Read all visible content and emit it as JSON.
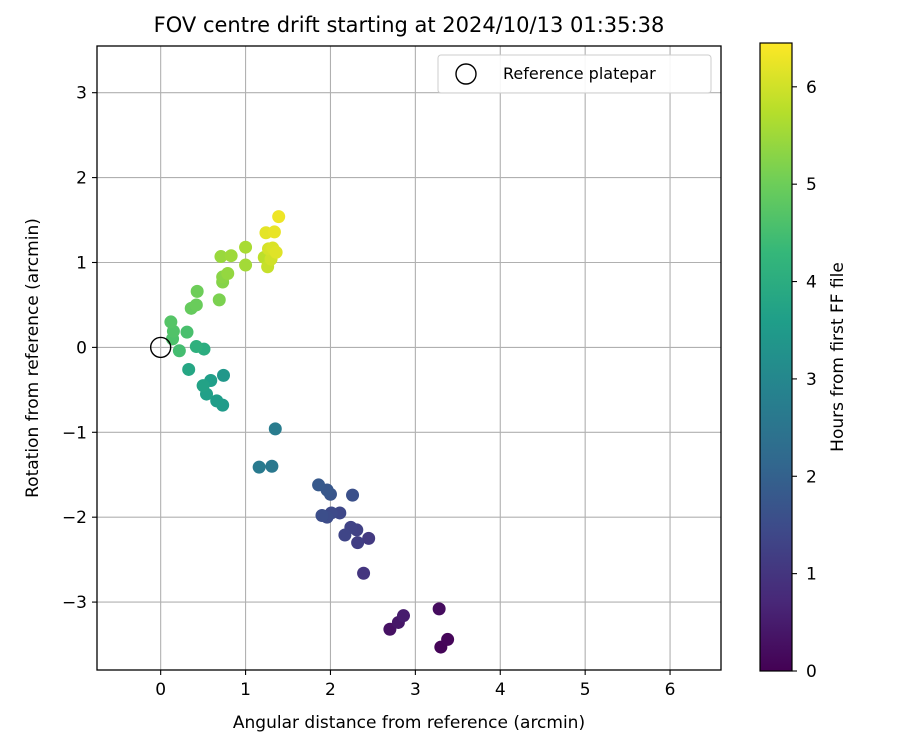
{
  "chart_data": {
    "type": "scatter",
    "title": "FOV centre drift starting at 2024/10/13 01:35:38",
    "xlabel": "Angular distance from reference (arcmin)",
    "ylabel": "Rotation from reference (arcmin)",
    "xlim": [
      -0.75,
      6.6
    ],
    "ylim": [
      -3.8,
      3.55
    ],
    "xticks": [
      0,
      1,
      2,
      3,
      4,
      5,
      6
    ],
    "yticks": [
      -3,
      -2,
      -1,
      0,
      1,
      2,
      3
    ],
    "xtick_labels": [
      "0",
      "1",
      "2",
      "3",
      "4",
      "5",
      "6"
    ],
    "ytick_labels": [
      "−3",
      "−2",
      "−1",
      "0",
      "1",
      "2",
      "3"
    ],
    "grid": true,
    "legend": {
      "placement": "top-right",
      "label": "Reference platepar"
    },
    "reference_point": {
      "x": 0,
      "y": 0
    },
    "colorbar": {
      "label": "Hours from first FF file",
      "colormap": "viridis",
      "range": [
        0,
        6.45
      ],
      "ticks": [
        0,
        1,
        2,
        3,
        4,
        5,
        6
      ],
      "tick_labels": [
        "0",
        "1",
        "2",
        "3",
        "4",
        "5",
        "6"
      ]
    },
    "points": [
      {
        "x": 3.3,
        "y": -3.53,
        "hours": 0.05
      },
      {
        "x": 3.38,
        "y": -3.44,
        "hours": 0.1
      },
      {
        "x": 3.28,
        "y": -3.08,
        "hours": 0.2
      },
      {
        "x": 2.7,
        "y": -3.32,
        "hours": 0.3
      },
      {
        "x": 2.8,
        "y": -3.24,
        "hours": 0.4
      },
      {
        "x": 2.86,
        "y": -3.16,
        "hours": 0.5
      },
      {
        "x": 2.39,
        "y": -2.66,
        "hours": 1.0
      },
      {
        "x": 2.45,
        "y": -2.25,
        "hours": 1.1
      },
      {
        "x": 2.32,
        "y": -2.3,
        "hours": 1.2
      },
      {
        "x": 2.31,
        "y": -2.15,
        "hours": 1.25
      },
      {
        "x": 2.24,
        "y": -2.12,
        "hours": 1.3
      },
      {
        "x": 2.17,
        "y": -2.21,
        "hours": 1.35
      },
      {
        "x": 2.11,
        "y": -1.95,
        "hours": 1.4
      },
      {
        "x": 2.01,
        "y": -1.95,
        "hours": 1.45
      },
      {
        "x": 1.96,
        "y": -2.0,
        "hours": 1.5
      },
      {
        "x": 1.9,
        "y": -1.98,
        "hours": 1.55
      },
      {
        "x": 2.26,
        "y": -1.74,
        "hours": 1.6
      },
      {
        "x": 2.0,
        "y": -1.73,
        "hours": 1.7
      },
      {
        "x": 1.96,
        "y": -1.68,
        "hours": 1.75
      },
      {
        "x": 1.86,
        "y": -1.62,
        "hours": 1.8
      },
      {
        "x": 1.31,
        "y": -1.4,
        "hours": 2.6
      },
      {
        "x": 1.16,
        "y": -1.41,
        "hours": 2.65
      },
      {
        "x": 1.35,
        "y": -0.96,
        "hours": 2.7
      },
      {
        "x": 0.74,
        "y": -0.33,
        "hours": 3.4
      },
      {
        "x": 0.73,
        "y": -0.68,
        "hours": 3.5
      },
      {
        "x": 0.66,
        "y": -0.63,
        "hours": 3.55
      },
      {
        "x": 0.59,
        "y": -0.39,
        "hours": 3.6
      },
      {
        "x": 0.54,
        "y": -0.55,
        "hours": 3.65
      },
      {
        "x": 0.5,
        "y": -0.45,
        "hours": 3.7
      },
      {
        "x": 0.33,
        "y": -0.26,
        "hours": 3.8
      },
      {
        "x": 0.51,
        "y": -0.02,
        "hours": 4.0
      },
      {
        "x": 0.42,
        "y": 0.01,
        "hours": 4.1
      },
      {
        "x": 0.22,
        "y": -0.04,
        "hours": 4.5
      },
      {
        "x": 0.31,
        "y": 0.18,
        "hours": 4.55
      },
      {
        "x": 0.14,
        "y": 0.1,
        "hours": 4.6
      },
      {
        "x": 0.15,
        "y": 0.19,
        "hours": 4.65
      },
      {
        "x": 0.12,
        "y": 0.3,
        "hours": 4.7
      },
      {
        "x": 0.36,
        "y": 0.46,
        "hours": 4.9
      },
      {
        "x": 0.42,
        "y": 0.5,
        "hours": 4.95
      },
      {
        "x": 0.43,
        "y": 0.66,
        "hours": 5.0
      },
      {
        "x": 0.69,
        "y": 0.56,
        "hours": 5.15
      },
      {
        "x": 0.73,
        "y": 0.77,
        "hours": 5.25
      },
      {
        "x": 0.73,
        "y": 0.83,
        "hours": 5.3
      },
      {
        "x": 0.79,
        "y": 0.87,
        "hours": 5.4
      },
      {
        "x": 0.71,
        "y": 1.07,
        "hours": 5.45
      },
      {
        "x": 0.83,
        "y": 1.08,
        "hours": 5.5
      },
      {
        "x": 1.0,
        "y": 0.97,
        "hours": 5.55
      },
      {
        "x": 1.0,
        "y": 1.18,
        "hours": 5.6
      },
      {
        "x": 1.22,
        "y": 1.06,
        "hours": 5.8
      },
      {
        "x": 1.26,
        "y": 0.95,
        "hours": 5.9
      },
      {
        "x": 1.3,
        "y": 1.04,
        "hours": 6.0
      },
      {
        "x": 1.27,
        "y": 1.16,
        "hours": 6.05
      },
      {
        "x": 1.32,
        "y": 1.17,
        "hours": 6.1
      },
      {
        "x": 1.36,
        "y": 1.12,
        "hours": 6.15
      },
      {
        "x": 1.24,
        "y": 1.35,
        "hours": 6.2
      },
      {
        "x": 1.34,
        "y": 1.36,
        "hours": 6.25
      },
      {
        "x": 1.39,
        "y": 1.54,
        "hours": 6.3
      }
    ]
  }
}
